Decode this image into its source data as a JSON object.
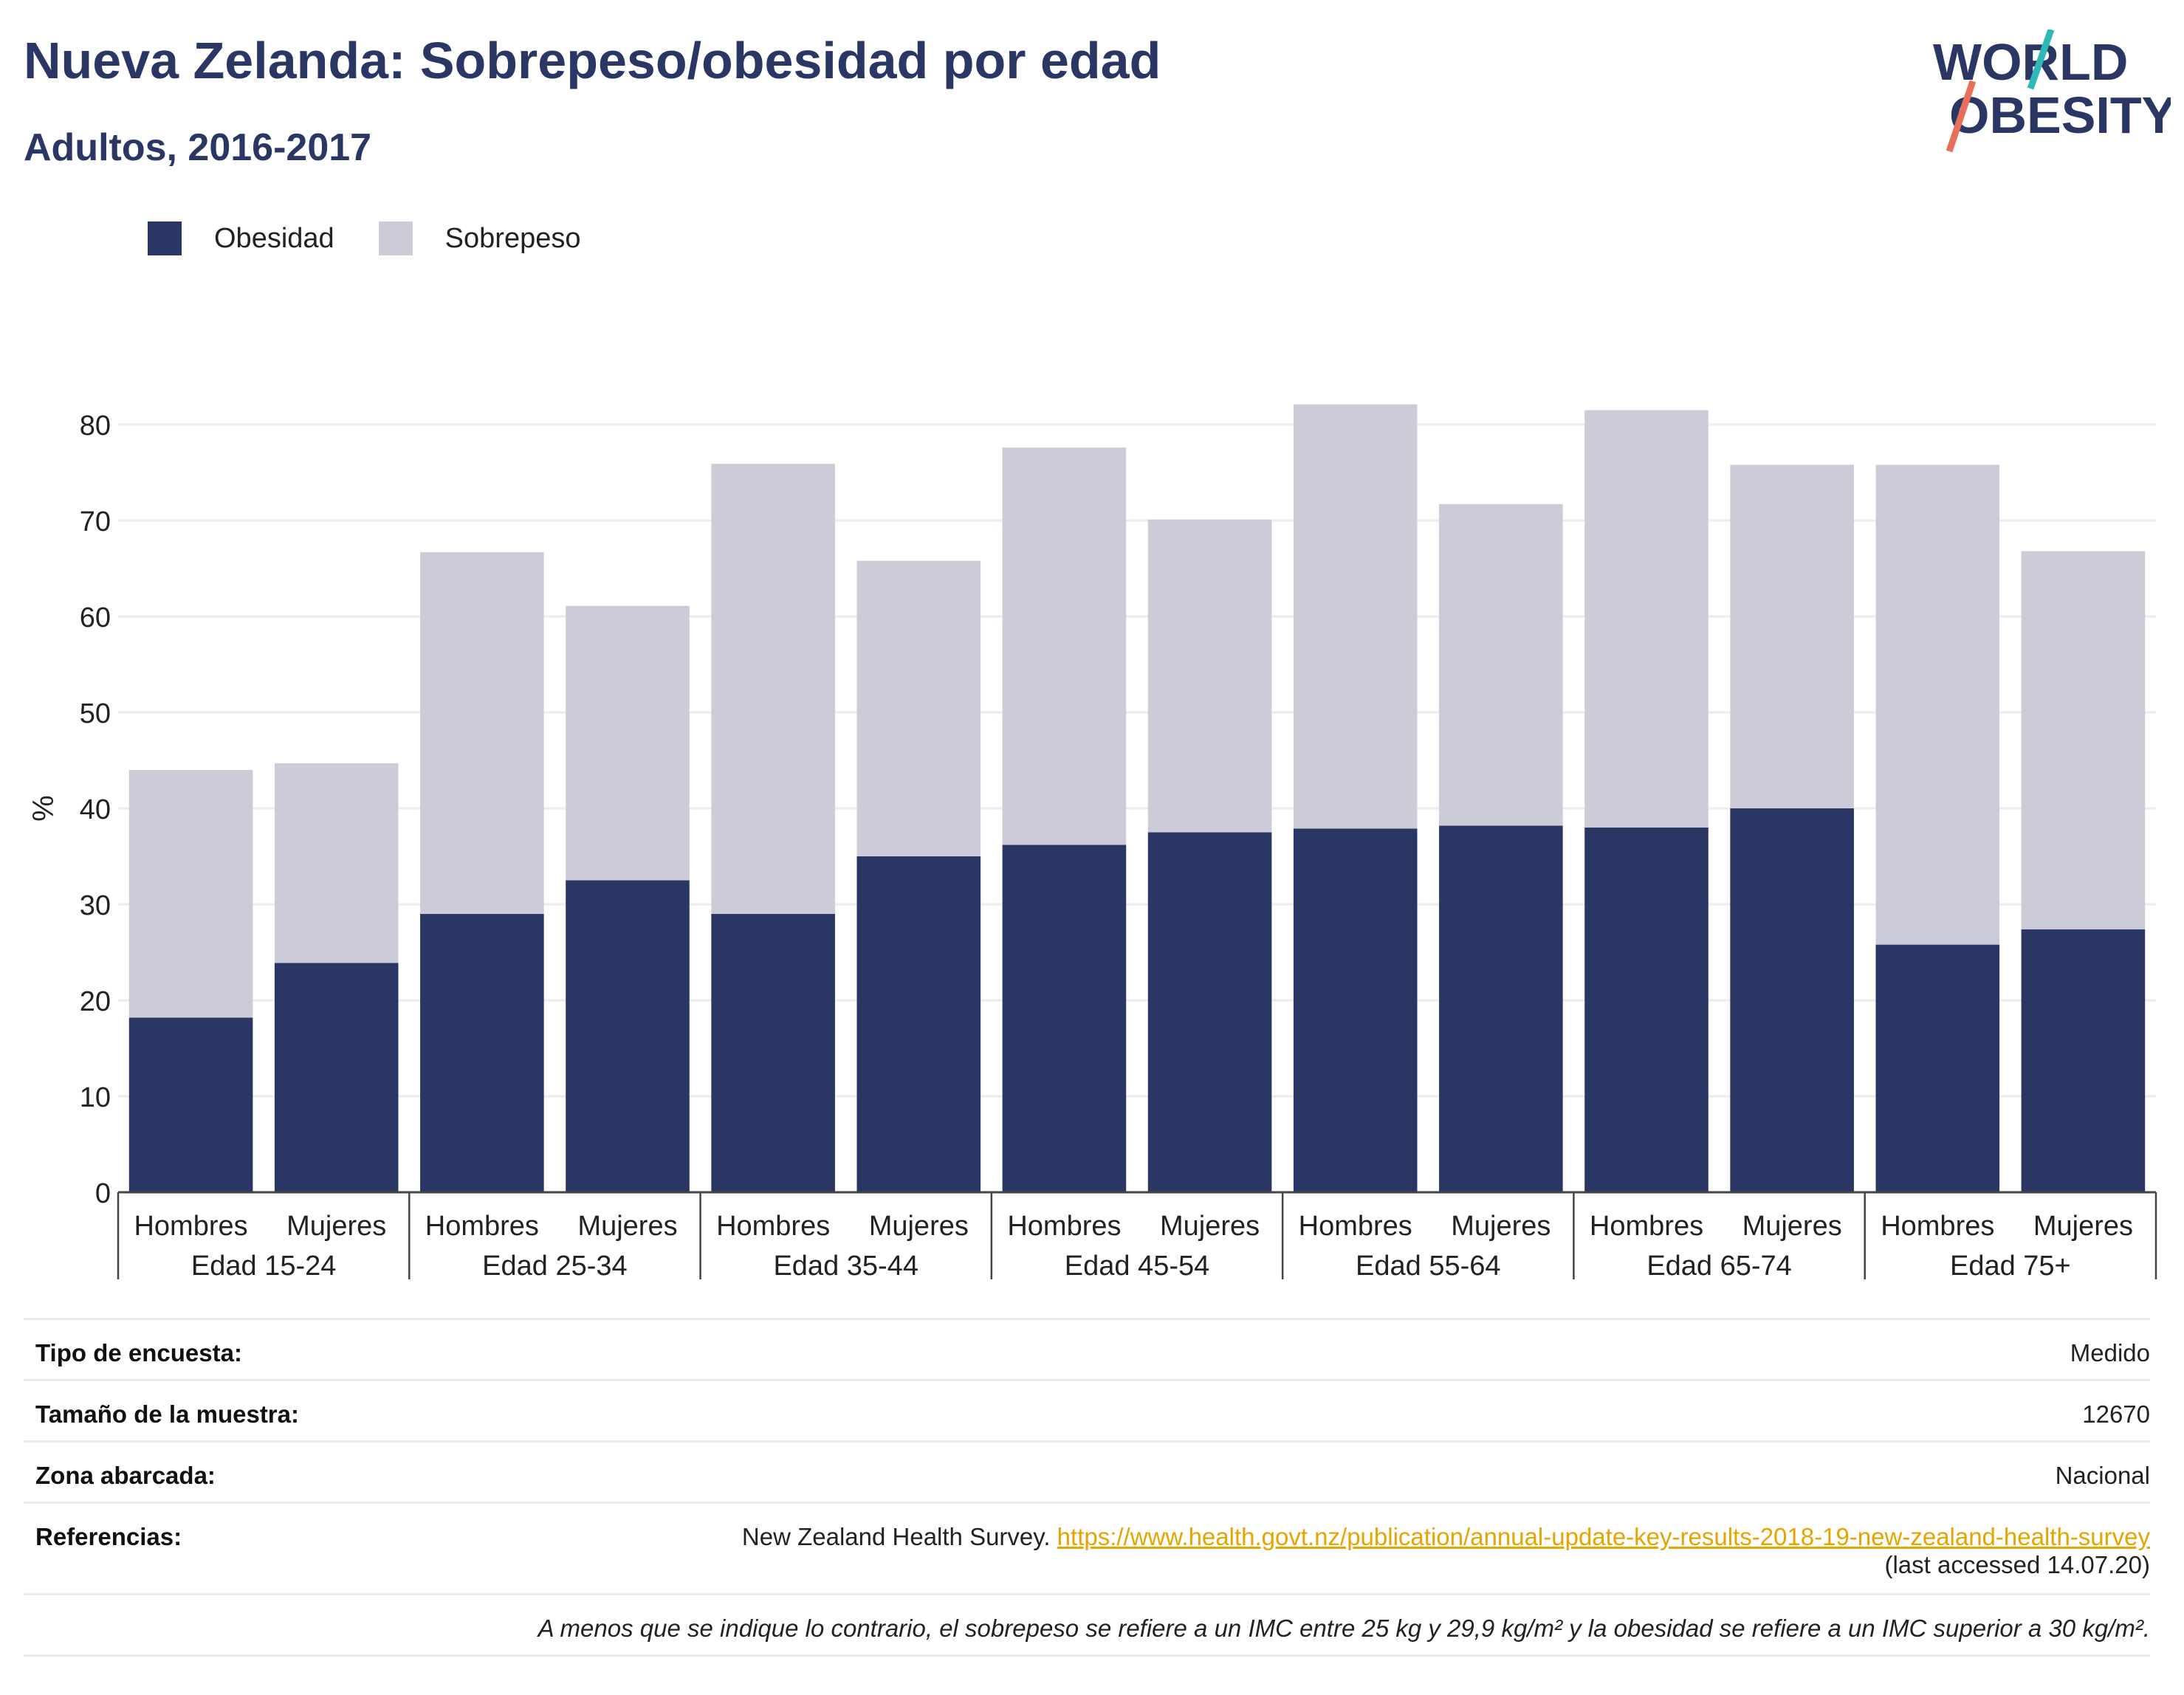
{
  "header": {
    "title": "Nueva Zelanda: Sobrepeso/obesidad por edad",
    "subtitle": "Adultos, 2016-2017"
  },
  "logo": {
    "line1": "WORLD",
    "line2": "OBESITY"
  },
  "colors": {
    "obesity": "#2a3663",
    "overweight": "#cbccd8",
    "title": "#2a3663",
    "link": "#e6a400",
    "logo_teal": "#2fb8b4",
    "logo_coral": "#e8705a"
  },
  "legend": {
    "obesity": "Obesidad",
    "overweight": "Sobrepeso"
  },
  "chart_data": {
    "type": "bar",
    "stacked": true,
    "ylabel": "%",
    "ylim": [
      0,
      87
    ],
    "yticks": [
      0,
      10,
      20,
      30,
      40,
      50,
      60,
      70,
      80
    ],
    "grid": true,
    "legend_position": "top-left",
    "groups": [
      "Edad 15-24",
      "Edad 25-34",
      "Edad 35-44",
      "Edad 45-54",
      "Edad 55-64",
      "Edad 65-74",
      "Edad 75+"
    ],
    "subcategories": [
      "Hombres",
      "Mujeres"
    ],
    "series": [
      {
        "name": "Obesidad",
        "values": [
          18.2,
          23.9,
          29.0,
          32.5,
          29.0,
          35.0,
          36.2,
          37.5,
          37.9,
          38.2,
          38.0,
          40.0,
          25.8,
          27.4
        ]
      },
      {
        "name": "Sobrepeso",
        "values": [
          25.8,
          20.8,
          37.7,
          28.6,
          46.9,
          30.8,
          41.4,
          32.6,
          44.2,
          33.5,
          43.5,
          35.8,
          50.0,
          39.4
        ]
      }
    ]
  },
  "info": {
    "survey_type_label": "Tipo de encuesta:",
    "survey_type_value": "Medido",
    "sample_size_label": "Tamaño de la muestra:",
    "sample_size_value": "12670",
    "area_label": "Zona abarcada:",
    "area_value": "Nacional",
    "references_label": "Referencias:",
    "references_text": "New Zealand Health Survey.",
    "references_link": "https://www.health.govt.nz/publication/annual-update-key-results-2018-19-new-zealand-health-survey",
    "references_accessed": "(last accessed 14.07.20)",
    "note": "A menos que se indique lo contrario, el sobrepeso se refiere a un IMC entre 25 kg y 29,9 kg/m² y la obesidad se refiere a un IMC superior a 30 kg/m²."
  }
}
